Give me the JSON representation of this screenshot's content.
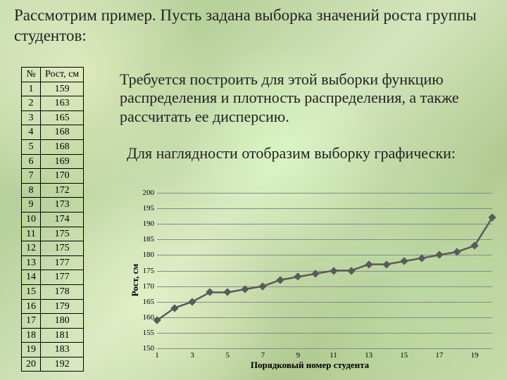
{
  "title": "Рассмотрим пример. Пусть задана выборка значений роста группы студентов:",
  "table": {
    "headers": [
      "№",
      "Рост, см"
    ],
    "rows": [
      [
        1,
        159
      ],
      [
        2,
        163
      ],
      [
        3,
        165
      ],
      [
        4,
        168
      ],
      [
        5,
        168
      ],
      [
        6,
        169
      ],
      [
        7,
        170
      ],
      [
        8,
        172
      ],
      [
        9,
        173
      ],
      [
        10,
        174
      ],
      [
        11,
        175
      ],
      [
        12,
        175
      ],
      [
        13,
        177
      ],
      [
        14,
        177
      ],
      [
        15,
        178
      ],
      [
        16,
        179
      ],
      [
        17,
        180
      ],
      [
        18,
        181
      ],
      [
        19,
        183
      ],
      [
        20,
        192
      ]
    ]
  },
  "text1": "Требуется построить для этой выборки функцию распределения  и плотность  распределения, а также рассчитать ее дисперсию.",
  "text2": "Для наглядности отобразим выборку графически:",
  "chart": {
    "type": "line",
    "ylabel": "Рост, см",
    "xlabel": "Порядковый номер студента",
    "ymin": 150,
    "ymax": 200,
    "ystep": 5,
    "xmin": 1,
    "xmax": 20,
    "xticks": [
      1,
      3,
      5,
      7,
      9,
      11,
      13,
      15,
      17,
      19
    ],
    "x": [
      1,
      2,
      3,
      4,
      5,
      6,
      7,
      8,
      9,
      10,
      11,
      12,
      13,
      14,
      15,
      16,
      17,
      18,
      19,
      20
    ],
    "y": [
      159,
      163,
      165,
      168,
      168,
      169,
      170,
      172,
      173,
      174,
      175,
      175,
      177,
      177,
      178,
      179,
      180,
      181,
      183,
      192
    ],
    "line_color": "#5a5a5a",
    "line_width": 2.5,
    "marker_color": "#5a5a5a",
    "marker_size": 4,
    "grid_color": "#888888",
    "tick_fontsize": 11,
    "label_fontsize": 13
  }
}
